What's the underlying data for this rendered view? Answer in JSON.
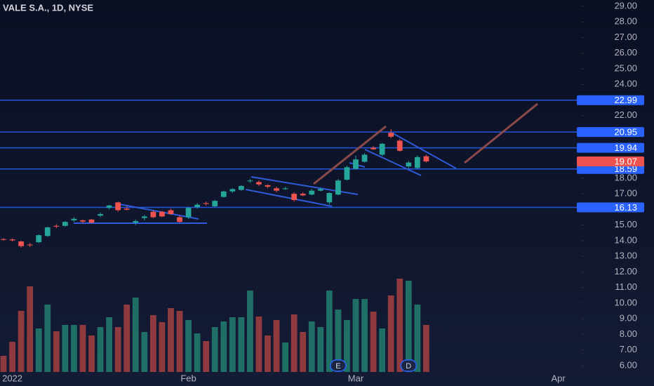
{
  "chart_data": {
    "type": "candlestick",
    "title": "VALE S.A., 1D, NYSE",
    "x": [
      0,
      1,
      2,
      3,
      4,
      5,
      6,
      7,
      8,
      9,
      10,
      11,
      12,
      13,
      14,
      15,
      16,
      17,
      18,
      19,
      20,
      21,
      22,
      23,
      24,
      25,
      26,
      27,
      28,
      29,
      30,
      31,
      32,
      33,
      34,
      35,
      36,
      37,
      38,
      39,
      40,
      41,
      42,
      43,
      44,
      45,
      46,
      47,
      48
    ],
    "open": [
      14.1,
      14.08,
      13.95,
      13.75,
      13.9,
      14.3,
      14.95,
      14.95,
      15.3,
      15.3,
      15.35,
      15.6,
      16.1,
      16.45,
      16.05,
      15.15,
      15.45,
      15.85,
      15.85,
      15.95,
      15.5,
      15.5,
      16.15,
      16.4,
      16.2,
      16.8,
      17.15,
      17.25,
      17.8,
      17.75,
      17.55,
      17.35,
      17.3,
      17.0,
      17.0,
      16.95,
      17.2,
      16.45,
      16.95,
      17.9,
      18.6,
      19.05,
      19.95,
      19.5,
      20.9,
      20.4,
      18.75,
      18.65,
      19.4
    ],
    "high": [
      14.15,
      14.15,
      14.0,
      13.85,
      14.4,
      14.9,
      15.05,
      15.25,
      15.5,
      15.35,
      15.4,
      15.8,
      16.3,
      16.5,
      16.2,
      15.35,
      15.65,
      15.95,
      15.9,
      16.05,
      15.6,
      16.15,
      16.4,
      16.5,
      16.6,
      17.2,
      17.35,
      17.55,
      17.95,
      17.85,
      17.6,
      17.45,
      17.45,
      17.1,
      17.1,
      17.3,
      17.4,
      17.1,
      17.95,
      18.8,
      19.45,
      19.6,
      20.05,
      20.25,
      21.15,
      20.5,
      19.1,
      19.45,
      19.5
    ],
    "low": [
      14.0,
      13.95,
      13.55,
      13.6,
      13.85,
      14.25,
      14.8,
      14.9,
      15.2,
      15.1,
      15.1,
      15.5,
      16.0,
      15.85,
      15.95,
      15.0,
      15.3,
      15.45,
      15.5,
      15.65,
      15.15,
      15.4,
      16.05,
      16.25,
      16.15,
      16.75,
      17.05,
      17.2,
      17.7,
      17.5,
      17.35,
      17.1,
      17.25,
      16.5,
      16.85,
      16.9,
      17.15,
      16.3,
      16.9,
      17.85,
      18.55,
      19.0,
      19.8,
      19.4,
      20.55,
      19.7,
      18.6,
      18.6,
      19.0
    ],
    "close": [
      14.05,
      14.02,
      13.65,
      13.7,
      14.35,
      14.85,
      14.9,
      15.2,
      15.4,
      15.22,
      15.15,
      15.7,
      16.25,
      15.95,
      15.98,
      15.25,
      15.55,
      15.5,
      15.55,
      15.7,
      15.2,
      16.1,
      16.3,
      16.35,
      16.55,
      17.15,
      17.3,
      17.5,
      17.85,
      17.6,
      17.45,
      17.2,
      17.35,
      16.6,
      16.9,
      17.2,
      17.3,
      17.05,
      17.85,
      18.7,
      19.2,
      19.5,
      19.85,
      20.2,
      20.65,
      19.75,
      19.0,
      19.35,
      19.07
    ],
    "volume": [
      23,
      43,
      87,
      122,
      62,
      96,
      58,
      67,
      67,
      67,
      52,
      64,
      78,
      64,
      96,
      106,
      57,
      81,
      71,
      91,
      87,
      74,
      55,
      44,
      64,
      72,
      78,
      78,
      116,
      79,
      52,
      74,
      42,
      82,
      57,
      72,
      64,
      116,
      89,
      74,
      104,
      104,
      86,
      62,
      109,
      133,
      130,
      96,
      67
    ],
    "up_color": "#26a69a",
    "down_color": "#ef5350",
    "volume_up_color": "#1f6f66",
    "volume_down_color": "#8f3a3f",
    "xlim": [
      -0.4,
      65.58
    ],
    "xticks": [
      {
        "value": 1,
        "label": "2022"
      },
      {
        "value": 21,
        "label": "Feb"
      },
      {
        "value": 40,
        "label": "Mar"
      },
      {
        "value": 63,
        "label": "Apr"
      }
    ],
    "ylim": [
      4.7,
      29.4
    ],
    "yticks": [
      {
        "value": 6,
        "label": "6.00"
      },
      {
        "value": 7,
        "label": "7.00"
      },
      {
        "value": 8,
        "label": "8.00"
      },
      {
        "value": 9,
        "label": "9.00"
      },
      {
        "value": 10,
        "label": "10.00"
      },
      {
        "value": 11,
        "label": "11.00"
      },
      {
        "value": 12,
        "label": "12.00"
      },
      {
        "value": 13,
        "label": "13.00"
      },
      {
        "value": 14,
        "label": "14.00"
      },
      {
        "value": 15,
        "label": "15.00"
      },
      {
        "value": 16,
        "label": "16.00"
      },
      {
        "value": 17,
        "label": "17.00"
      },
      {
        "value": 18,
        "label": "18.00"
      },
      {
        "value": 19,
        "label": "19.00"
      },
      {
        "value": 20,
        "label": "20.00"
      },
      {
        "value": 21,
        "label": "21.00"
      },
      {
        "value": 22,
        "label": "22.00"
      },
      {
        "value": 23,
        "label": "23.00"
      },
      {
        "value": 24,
        "label": "24.00"
      },
      {
        "value": 25,
        "label": "25.00"
      },
      {
        "value": 26,
        "label": "26.00"
      },
      {
        "value": 27,
        "label": "27.00"
      },
      {
        "value": 28,
        "label": "28.00"
      },
      {
        "value": 29,
        "label": "29.00"
      }
    ],
    "levels": [
      22.99,
      20.95,
      19.94,
      18.59,
      16.13
    ],
    "level_color": "#2962ff",
    "current_price": 19.07,
    "events": [
      {
        "label": "E",
        "x": 38
      },
      {
        "label": "D",
        "x": 46
      }
    ],
    "grid": false
  }
}
